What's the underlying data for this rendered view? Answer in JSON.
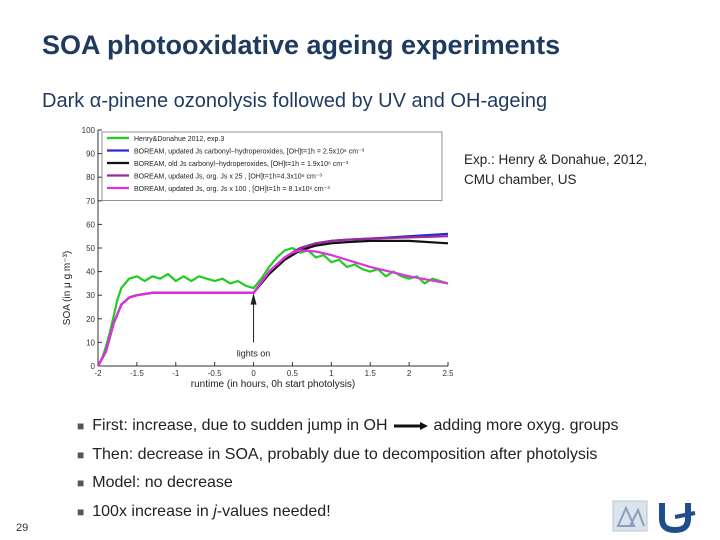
{
  "slide": {
    "title": "SOA photooxidative ageing experiments",
    "subtitle": "Dark α-pinene ozonolysis followed by UV and OH-ageing",
    "note_line1": "Exp.: Henry & Donahue, 2012,",
    "note_line2": "CMU chamber, US",
    "page_number": "29"
  },
  "bullets": [
    {
      "pre": "First: increase, due to sudden jump in OH",
      "post": "adding more oxyg. groups"
    },
    {
      "pre": "Then: decrease in SOA, probably due to decomposition after photolysis"
    },
    {
      "pre": "Model: no decrease"
    },
    {
      "pre": "100x increase in ",
      "italic": "j",
      "post": "-values needed!"
    }
  ],
  "chart_data": {
    "type": "line",
    "xlabel": "runtime (in hours, 0h start photolysis)",
    "ylabel": "SOA (in μ g m⁻³)",
    "xlim": [
      -2,
      2.5
    ],
    "ylim": [
      0,
      100
    ],
    "xticks": [
      "-2",
      "-1.5",
      "-1",
      "-0.5",
      "0",
      "0.5",
      "1",
      "1.5",
      "2",
      "2.5"
    ],
    "yticks": [
      "0",
      "10",
      "20",
      "30",
      "40",
      "50",
      "60",
      "70",
      "80",
      "90",
      "100"
    ],
    "annotation": "lights on",
    "annotation_x": 0,
    "legend_position": "top-left",
    "series": [
      {
        "name": "Henry&Donahue 2012, exp.3",
        "color": "#22cc22",
        "x": [
          -2,
          -1.95,
          -1.9,
          -1.85,
          -1.8,
          -1.75,
          -1.7,
          -1.6,
          -1.5,
          -1.4,
          -1.3,
          -1.2,
          -1.1,
          -1.0,
          -0.9,
          -0.8,
          -0.7,
          -0.6,
          -0.5,
          -0.4,
          -0.3,
          -0.2,
          -0.1,
          0.0,
          0.1,
          0.2,
          0.3,
          0.4,
          0.5,
          0.6,
          0.7,
          0.8,
          0.9,
          1.0,
          1.1,
          1.2,
          1.3,
          1.4,
          1.5,
          1.6,
          1.7,
          1.8,
          1.9,
          2.0,
          2.1,
          2.2,
          2.3,
          2.4,
          2.5
        ],
        "y": [
          0,
          3,
          8,
          14,
          21,
          28,
          33,
          37,
          38,
          36,
          38,
          37,
          39,
          36,
          38,
          36,
          38,
          37,
          36,
          37,
          35,
          36,
          34,
          33,
          37,
          42,
          46,
          49,
          50,
          48,
          49,
          46,
          47,
          44,
          45,
          42,
          43,
          41,
          40,
          41,
          38,
          40,
          38,
          37,
          38,
          35,
          37,
          36,
          35
        ]
      },
      {
        "name": "BOREAM, updated Js carbonyl−hydroperoxides, [OH]t=1h = 2.5x10⁶ cm⁻³",
        "color": "#2a2ad0",
        "x": [
          -2,
          -1.9,
          -1.8,
          -1.7,
          -1.6,
          -1.5,
          -1.3,
          -1.0,
          -0.5,
          0.0,
          0.2,
          0.4,
          0.6,
          0.8,
          1.0,
          1.2,
          1.5,
          2.0,
          2.5
        ],
        "y": [
          0,
          6,
          18,
          26,
          29,
          30,
          31,
          31,
          31,
          31,
          40,
          46,
          50,
          52,
          53,
          53.5,
          54,
          55,
          56
        ]
      },
      {
        "name": "BOREAM, old Js carbonyl−hydroperoxides, [OH]t=1h = 1.9x10⁶ cm⁻³",
        "color": "#111111",
        "x": [
          -2,
          -1.9,
          -1.8,
          -1.7,
          -1.6,
          -1.5,
          -1.3,
          -1.0,
          -0.5,
          0.0,
          0.2,
          0.4,
          0.6,
          0.8,
          1.0,
          1.2,
          1.5,
          2.0,
          2.5
        ],
        "y": [
          0,
          6,
          18,
          26,
          29,
          30,
          31,
          31,
          31,
          31,
          39,
          45,
          49,
          51,
          52,
          52.5,
          53,
          53,
          52
        ]
      },
      {
        "name": "BOREAM, updated Js, org. Js x 25 , [OH]t=1h=4.3x10⁶ cm⁻³",
        "color": "#9a2a9a",
        "x": [
          -2,
          -1.9,
          -1.8,
          -1.7,
          -1.6,
          -1.5,
          -1.3,
          -1.0,
          -0.5,
          0.0,
          0.2,
          0.4,
          0.6,
          0.8,
          1.0,
          1.2,
          1.5,
          2.0,
          2.5
        ],
        "y": [
          0,
          6,
          18,
          26,
          29,
          30,
          31,
          31,
          31,
          31,
          40,
          46,
          50,
          52,
          53,
          53.5,
          54,
          54.5,
          55
        ]
      },
      {
        "name": "BOREAM, updated Js, org. Js x 100 , [OH]t=1h = 8.1x10⁶ cm⁻³",
        "color": "#dd33dd",
        "x": [
          -2,
          -1.9,
          -1.8,
          -1.7,
          -1.6,
          -1.5,
          -1.3,
          -1.0,
          -0.5,
          0.0,
          0.2,
          0.4,
          0.5,
          0.6,
          0.8,
          1.0,
          1.2,
          1.5,
          2.0,
          2.5
        ],
        "y": [
          0,
          6,
          18,
          26,
          29,
          30,
          31,
          31,
          31,
          31,
          40,
          46,
          48,
          49,
          48.5,
          47,
          45,
          42,
          38,
          35
        ]
      }
    ]
  },
  "colors": {
    "title": "#1f3a5f",
    "arrow": "#1f3a5f"
  }
}
